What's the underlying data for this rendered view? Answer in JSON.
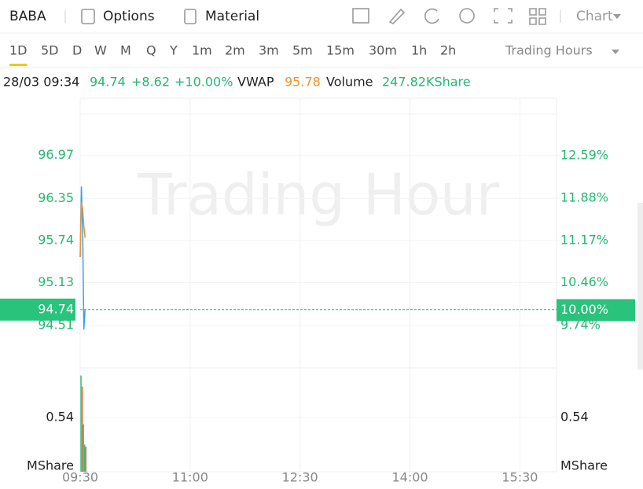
{
  "toolbar": {
    "symbol": "BABA",
    "options": "Options",
    "material": "Material",
    "chart": "Chart"
  },
  "periods": [
    "1D",
    "5D",
    "D",
    "W",
    "M",
    "Q",
    "Y",
    "1m",
    "2m",
    "3m",
    "5m",
    "15m",
    "30m",
    "1h",
    "2h"
  ],
  "active_period": 0,
  "session": "Trading Hours",
  "info": {
    "time": "28/03 09:34",
    "change": "+8.62",
    "change_pct": "+10.00%",
    "volume_label": "Volume",
    "volume": "247.82KShare"
  },
  "chart_data": [
    {
      "type": "line",
      "watermark": "Trading Hour",
      "x": [
        "09:30",
        "09:31",
        "09:32",
        "09:33",
        "09:34"
      ],
      "xlim": [
        "09:30",
        "16:00"
      ],
      "xticks": [
        "09:30",
        "11:00",
        "12:30",
        "14:00",
        "15:30"
      ],
      "ylim": [
        93.93,
        97.57
      ],
      "yticks": [
        96.97,
        96.35,
        95.74,
        95.13,
        94.51
      ],
      "y2lim": [
        9.07,
        13.29
      ],
      "y2ticks": [
        {
          "value": 12.59,
          "label": "12.59%"
        },
        {
          "value": 11.88,
          "label": "11.88%"
        },
        {
          "value": 11.17,
          "label": "11.17%"
        },
        {
          "value": 10.46,
          "label": "10.46%"
        },
        {
          "value": 9.74,
          "label": "9.74%"
        }
      ],
      "last_pct": {
        "value": 10,
        "label": "10.00%"
      },
      "grid": true,
      "series": [
        {
          "color": "#3a9ff0",
          "values": [
            95.5,
            96.52,
            95.9,
            94.45,
            94.74
          ]
        },
        {
          "name": "VWAP",
          "color": "#f0922a",
          "values": [
            95.5,
            96.3,
            96.2,
            95.95,
            95.78
          ]
        }
      ]
    },
    {
      "type": "bar",
      "x": [
        "09:30",
        "09:31",
        "09:32",
        "09:33",
        "09:34"
      ],
      "values": [
        0.955,
        0.845,
        0.47,
        0.27,
        0.248
      ],
      "colors": [
        "#2ac37c",
        "#e8664a",
        "#2ac37c",
        "#2ac37c",
        "#e8664a"
      ],
      "ylim": [
        0,
        1.03
      ],
      "yticks": [
        0.54
      ],
      "unit": "MShare",
      "grid": true
    }
  ]
}
